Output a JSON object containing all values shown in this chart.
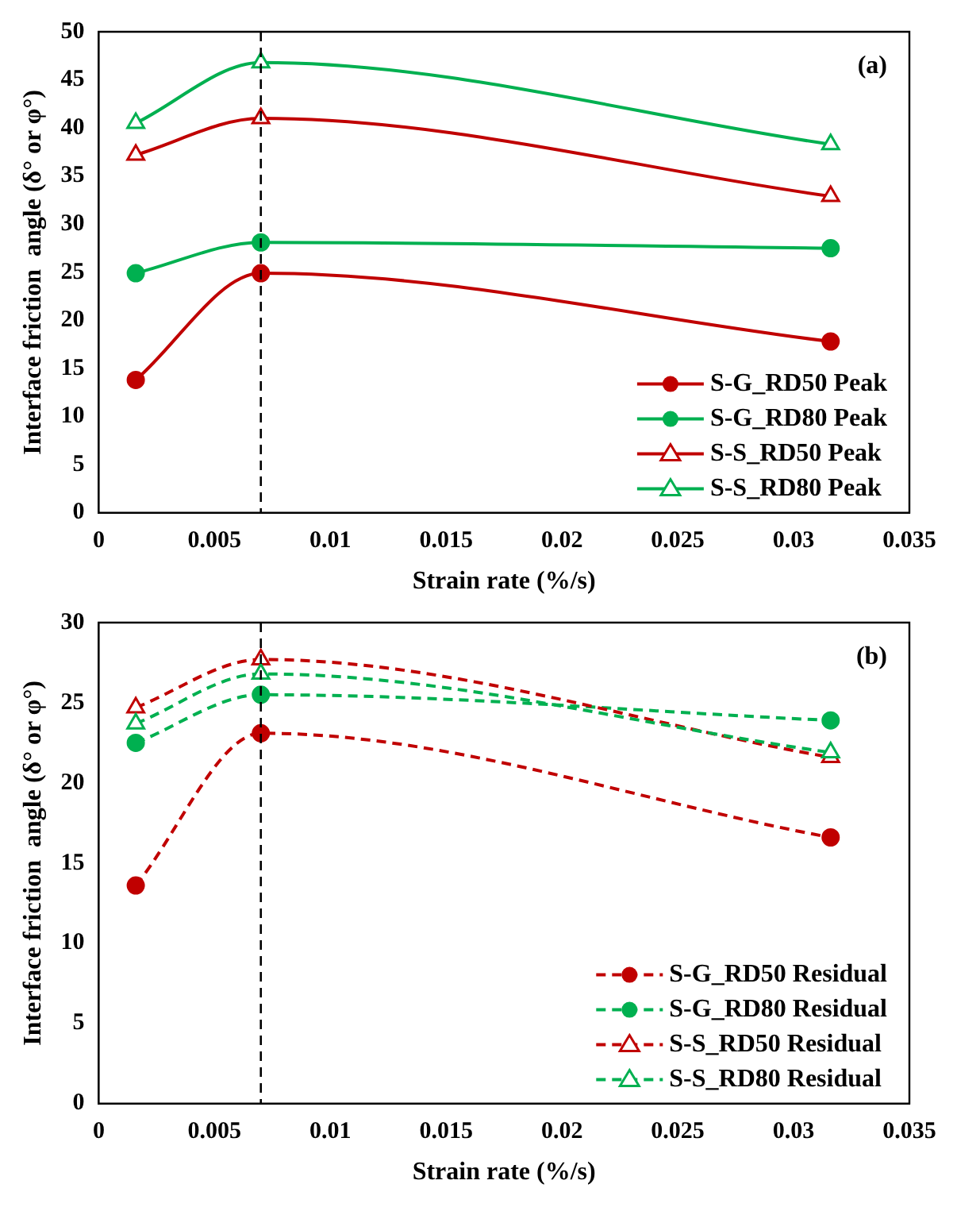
{
  "chart_data": [
    {
      "type": "line",
      "ylabel": "Interface friction  angle (δ° or φ°)",
      "xlabel": "Strain rate (%/s)",
      "annotations": [
        "(a)"
      ],
      "x": [
        0.0016,
        0.007,
        0.0316
      ],
      "xlim": [
        0,
        0.035
      ],
      "xticks": [
        0,
        0.005,
        0.01,
        0.015,
        0.02,
        0.025,
        0.03,
        0.035
      ],
      "ylim": [
        0,
        50
      ],
      "yticks": [
        0,
        5,
        10,
        15,
        20,
        25,
        30,
        35,
        40,
        45,
        50
      ],
      "grid": false,
      "legend": "bottom right",
      "line_style": "solid",
      "ref_lines": [
        {
          "axis": "x",
          "value": 0.007,
          "color": "#000000",
          "line_style": "dashed"
        }
      ],
      "series": [
        {
          "name": "S-G_RD50 Peak",
          "color": "#c00000",
          "marker": "circle",
          "values": [
            13.8,
            24.9,
            17.8
          ]
        },
        {
          "name": "S-G_RD80 Peak",
          "color": "#00b050",
          "marker": "circle",
          "values": [
            24.9,
            28.1,
            27.5
          ]
        },
        {
          "name": "S-S_RD50 Peak",
          "color": "#c00000",
          "marker": "triangle",
          "values": [
            37.2,
            41.0,
            32.9
          ]
        },
        {
          "name": "S-S_RD80 Peak",
          "color": "#00b050",
          "marker": "triangle",
          "values": [
            40.5,
            46.8,
            38.3
          ]
        }
      ]
    },
    {
      "type": "line",
      "ylabel": "Interface friction  angle (δ° or φ°)",
      "xlabel": "Strain rate (%/s)",
      "annotations": [
        "(b)"
      ],
      "x": [
        0.0016,
        0.007,
        0.0316
      ],
      "xlim": [
        0,
        0.035
      ],
      "xticks": [
        0,
        0.005,
        0.01,
        0.015,
        0.02,
        0.025,
        0.03,
        0.035
      ],
      "ylim": [
        0,
        30
      ],
      "yticks": [
        0,
        5,
        10,
        15,
        20,
        25,
        30
      ],
      "grid": false,
      "legend": "bottom right",
      "line_style": "dashed",
      "ref_lines": [
        {
          "axis": "x",
          "value": 0.007,
          "color": "#000000",
          "line_style": "dashed"
        }
      ],
      "series": [
        {
          "name": "S-G_RD50 Residual",
          "color": "#c00000",
          "marker": "circle",
          "values": [
            13.6,
            23.1,
            16.6
          ]
        },
        {
          "name": "S-G_RD80 Residual",
          "color": "#00b050",
          "marker": "circle",
          "values": [
            22.5,
            25.5,
            23.9
          ]
        },
        {
          "name": "S-S_RD50 Residual",
          "color": "#c00000",
          "marker": "triangle",
          "values": [
            24.7,
            27.7,
            21.6
          ]
        },
        {
          "name": "S-S_RD80 Residual",
          "color": "#00b050",
          "marker": "triangle",
          "values": [
            23.7,
            26.8,
            21.9
          ]
        }
      ]
    }
  ]
}
